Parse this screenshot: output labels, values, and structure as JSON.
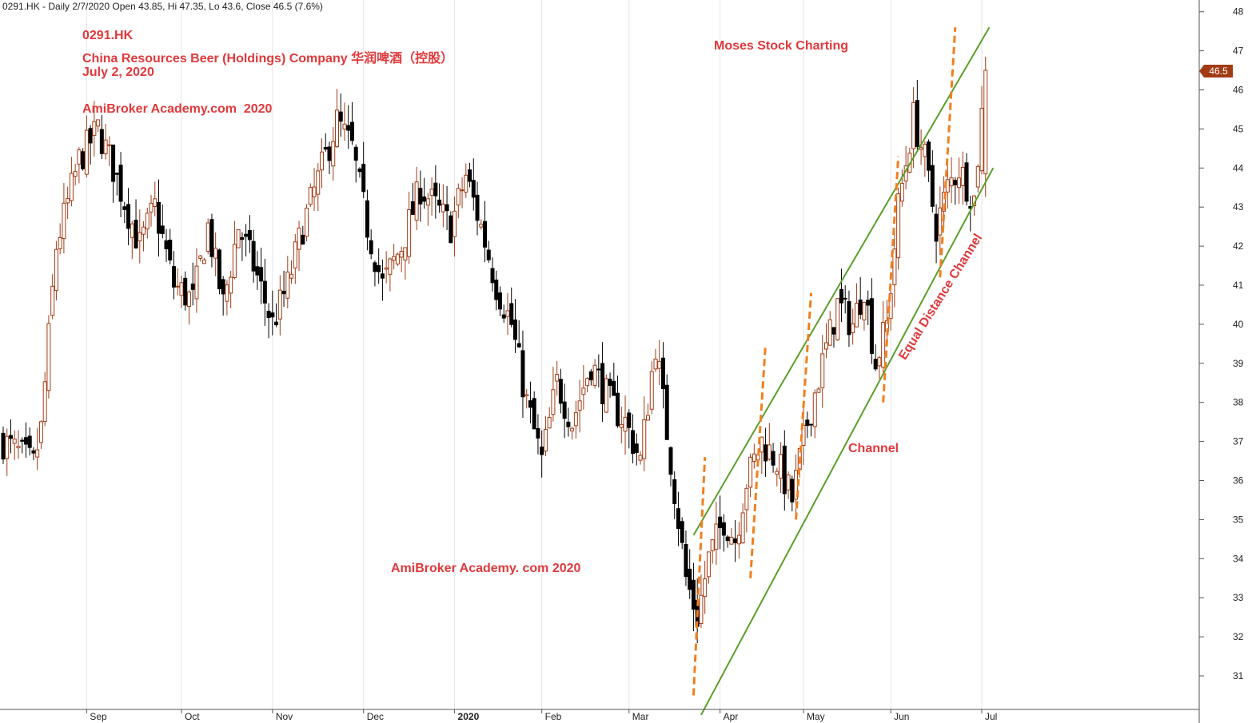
{
  "header": {
    "text": "0291.HK - Daily 2/7/2020 Open 43.85, Hi 47.35, Lo 43.6, Close 46.5 (7.6%)"
  },
  "annotations": {
    "ticker": "0291.HK",
    "company": "China Resources Beer (Holdings) Company 华润啤酒（控股）",
    "date": "July 2, 2020",
    "watermark_top": "AmiBroker Academy.com  2020",
    "watermark_bottom": "AmiBroker Academy. com 2020",
    "author": "Moses Stock Charting",
    "channel_label": "Channel",
    "equal_distance_label": "Equal Distance Channel"
  },
  "price_tag": "46.5",
  "colors": {
    "up_candle": "#a23b14",
    "down_candle": "#000000",
    "channel_line": "#5a9f2a",
    "wave_line": "#f07f1e",
    "annotation_text": "#e0393b"
  },
  "chart_data": {
    "type": "candlestick",
    "symbol": "0291.HK",
    "y_range": [
      30.2,
      48.2
    ],
    "y_ticks": [
      31,
      32,
      33,
      34,
      35,
      36,
      37,
      38,
      39,
      40,
      41,
      42,
      43,
      44,
      45,
      46,
      47,
      48
    ],
    "x_tick_labels": [
      "Sep",
      "Oct",
      "Nov",
      "Dec",
      "2020",
      "Feb",
      "Mar",
      "Apr",
      "May",
      "Jun",
      "Jul"
    ],
    "price_path": [
      [
        0,
        37.0
      ],
      [
        8,
        36.4
      ],
      [
        10,
        37.3
      ],
      [
        14,
        42.0
      ],
      [
        20,
        44.2
      ],
      [
        25,
        45.0
      ],
      [
        29,
        44.0
      ],
      [
        36,
        42.0
      ],
      [
        40,
        43.0
      ],
      [
        45,
        41.0
      ],
      [
        50,
        40.6
      ],
      [
        54,
        42.5
      ],
      [
        58,
        40.5
      ],
      [
        62,
        42.5
      ],
      [
        66,
        41.5
      ],
      [
        71,
        40.0
      ],
      [
        75,
        41.0
      ],
      [
        79,
        42.5
      ],
      [
        84,
        44.0
      ],
      [
        88,
        45.2
      ],
      [
        92,
        44.5
      ],
      [
        96,
        42.5
      ],
      [
        100,
        41.0
      ],
      [
        105,
        42.0
      ],
      [
        110,
        43.5
      ],
      [
        114,
        43.0
      ],
      [
        118,
        42.5
      ],
      [
        122,
        43.8
      ],
      [
        126,
        42.5
      ],
      [
        130,
        41.0
      ],
      [
        134,
        40.0
      ],
      [
        138,
        38.0
      ],
      [
        142,
        36.5
      ],
      [
        146,
        38.5
      ],
      [
        150,
        37.5
      ],
      [
        155,
        39.0
      ],
      [
        160,
        38.0
      ],
      [
        164,
        37.5
      ],
      [
        168,
        36.5
      ],
      [
        172,
        39.5
      ],
      [
        176,
        36.5
      ],
      [
        180,
        33.5
      ],
      [
        183,
        32.5
      ],
      [
        186,
        34.0
      ],
      [
        190,
        35.0
      ],
      [
        193,
        34.5
      ],
      [
        196,
        36.0
      ],
      [
        200,
        37.0
      ],
      [
        204,
        36.5
      ],
      [
        208,
        35.5
      ],
      [
        212,
        37.5
      ],
      [
        216,
        39.0
      ],
      [
        220,
        40.5
      ],
      [
        224,
        40.0
      ],
      [
        227,
        41.0
      ],
      [
        230,
        39.0
      ],
      [
        233,
        40.0
      ],
      [
        236,
        43.0
      ],
      [
        240,
        45.3
      ],
      [
        243,
        44.2
      ],
      [
        246,
        42.5
      ],
      [
        249,
        43.5
      ],
      [
        252,
        44.0
      ],
      [
        256,
        43.2
      ],
      [
        259,
        46.5
      ]
    ],
    "channel": {
      "upper": [
        [
          182,
          34.6
        ],
        [
          260,
          47.6
        ]
      ],
      "lower": [
        [
          184,
          30.0
        ],
        [
          261,
          44.0
        ]
      ],
      "style": "solid",
      "color": "#5a9f2a"
    },
    "wave_markers": [
      {
        "from": [
          182,
          30.5
        ],
        "to": [
          185,
          36.6
        ]
      },
      {
        "from": [
          197,
          33.5
        ],
        "to": [
          201,
          39.5
        ]
      },
      {
        "from": [
          209,
          35.0
        ],
        "to": [
          213,
          40.8
        ]
      },
      {
        "from": [
          232,
          38.0
        ],
        "to": [
          236,
          44.3
        ]
      },
      {
        "from": [
          247,
          41.2
        ],
        "to": [
          251,
          47.6
        ]
      }
    ],
    "last_close": 46.5
  }
}
